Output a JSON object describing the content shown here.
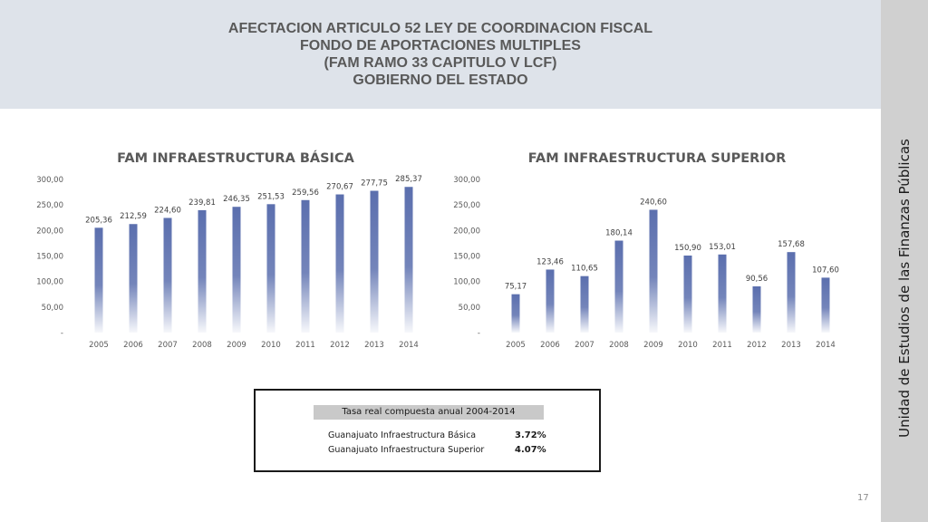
{
  "header": {
    "lines": [
      "AFECTACION ARTICULO 52 LEY DE COORDINACION FISCAL",
      "FONDO DE APORTACIONES MULTIPLES",
      "(FAM RAMO 33 CAPITULO V LCF)",
      "GOBIERNO DEL ESTADO"
    ]
  },
  "sidebar": {
    "text": "Unidad de Estudios de las Finanzas Públicas"
  },
  "chart_data": [
    {
      "type": "bar",
      "title": "FAM INFRAESTRUCTURA BÁSICA",
      "categories": [
        "2005",
        "2006",
        "2007",
        "2008",
        "2009",
        "2010",
        "2011",
        "2012",
        "2013",
        "2014"
      ],
      "values": [
        205.36,
        212.59,
        224.6,
        239.81,
        246.35,
        251.53,
        259.56,
        270.67,
        277.75,
        285.37
      ],
      "data_labels": [
        "205,36",
        "212,59",
        "224,60",
        "239,81",
        "246,35",
        "251,53",
        "259,56",
        "270,67",
        "277,75",
        "285,37"
      ],
      "yticks": [
        0,
        50,
        100,
        150,
        200,
        250,
        300
      ],
      "ytick_labels": [
        "-",
        "50,00",
        "100,00",
        "150,00",
        "200,00",
        "250,00",
        "300,00"
      ],
      "ylim": [
        0,
        300
      ],
      "grid": false,
      "bar_color": "#5b6fae"
    },
    {
      "type": "bar",
      "title": "FAM INFRAESTRUCTURA SUPERIOR",
      "categories": [
        "2005",
        "2006",
        "2007",
        "2008",
        "2009",
        "2010",
        "2011",
        "2012",
        "2013",
        "2014"
      ],
      "values": [
        75.17,
        123.46,
        110.65,
        180.14,
        240.6,
        150.9,
        153.01,
        90.56,
        157.68,
        107.6
      ],
      "data_labels": [
        "75,17",
        "123,46",
        "110,65",
        "180,14",
        "240,60",
        "150,90",
        "153,01",
        "90,56",
        "157,68",
        "107,60"
      ],
      "yticks": [
        0,
        50,
        100,
        150,
        200,
        250,
        300
      ],
      "ytick_labels": [
        "-",
        "50,00",
        "100,00",
        "150,00",
        "200,00",
        "250,00",
        "300,00"
      ],
      "ylim": [
        0,
        300
      ],
      "grid": false,
      "bar_color": "#5b6fae"
    }
  ],
  "tasa": {
    "header": "Tasa real compuesta anual 2004-2014",
    "rows": [
      {
        "label": "Guanajuato  Infraestructura Básica",
        "value": "3.72%"
      },
      {
        "label": "Guanajuato  Infraestructura Superior",
        "value": "4.07%"
      }
    ]
  },
  "page_number": "17"
}
